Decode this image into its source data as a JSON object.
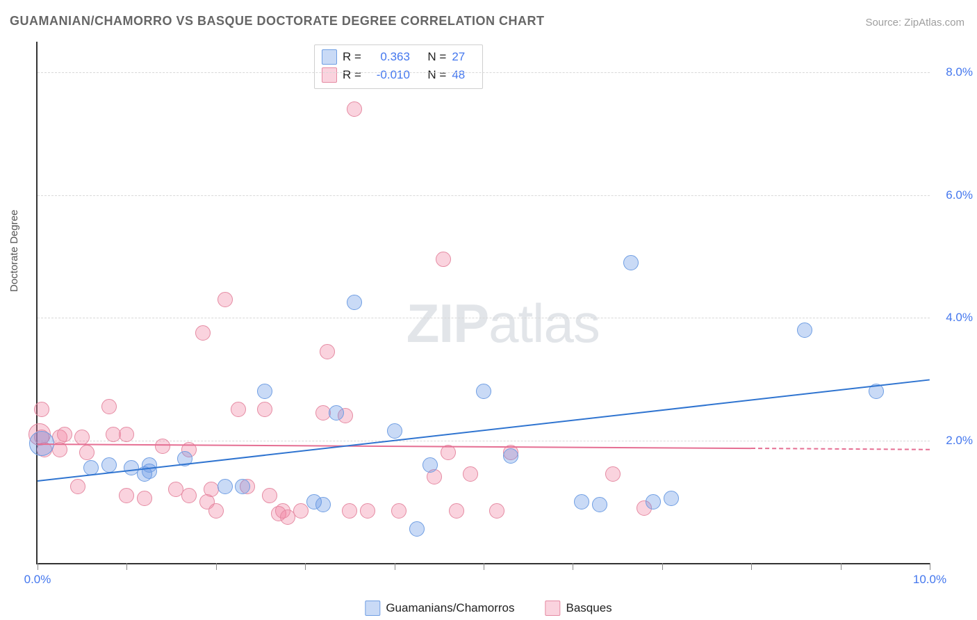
{
  "title": "GUAMANIAN/CHAMORRO VS BASQUE DOCTORATE DEGREE CORRELATION CHART",
  "source_label": "Source: ZipAtlas.com",
  "ylabel": "Doctorate Degree",
  "watermark_strong": "ZIP",
  "watermark_light": "atlas",
  "colors": {
    "series_a_fill": "rgba(100,150,230,0.35)",
    "series_a_stroke": "#6f9ee3",
    "series_a_line": "#2f74d0",
    "series_b_fill": "rgba(240,130,160,0.35)",
    "series_b_stroke": "#e58aa2",
    "series_b_line": "#e56f93",
    "axis_text": "#4477ee",
    "grid": "#d8d8d8",
    "border": "#333333",
    "title_text": "#666666",
    "source_text": "#9e9e9e"
  },
  "chart": {
    "type": "scatter",
    "xlim": [
      0,
      10
    ],
    "ylim": [
      0,
      8.5
    ],
    "x_ticks": [
      0,
      1,
      2,
      3,
      4,
      5,
      6,
      7,
      8,
      9,
      10
    ],
    "x_tick_labels": {
      "0": "0.0%",
      "10": "10.0%"
    },
    "y_gridlines": [
      2,
      4,
      6,
      8
    ],
    "y_tick_labels": {
      "2": "2.0%",
      "4": "4.0%",
      "6": "6.0%",
      "8": "8.0%"
    },
    "marker_radius": 11,
    "marker_stroke_width": 1,
    "line_width": 2,
    "title_fontsize": 18,
    "label_fontsize": 15,
    "tick_fontsize": 17,
    "watermark_fontsize": 78
  },
  "series_a": {
    "label": "Guamanians/Chamorros",
    "r_label": "R =",
    "r_value": "0.363",
    "n_label": "N =",
    "n_value": "27",
    "points": [
      {
        "x": 0.05,
        "y": 1.95,
        "r": 18
      },
      {
        "x": 0.6,
        "y": 1.55
      },
      {
        "x": 0.8,
        "y": 1.6
      },
      {
        "x": 1.05,
        "y": 1.55
      },
      {
        "x": 1.2,
        "y": 1.45
      },
      {
        "x": 1.25,
        "y": 1.5
      },
      {
        "x": 1.25,
        "y": 1.6
      },
      {
        "x": 1.65,
        "y": 1.7
      },
      {
        "x": 2.1,
        "y": 1.25
      },
      {
        "x": 2.3,
        "y": 1.25
      },
      {
        "x": 2.55,
        "y": 2.8
      },
      {
        "x": 3.1,
        "y": 1.0
      },
      {
        "x": 3.2,
        "y": 0.95
      },
      {
        "x": 3.35,
        "y": 2.45
      },
      {
        "x": 3.55,
        "y": 4.25
      },
      {
        "x": 4.0,
        "y": 2.15
      },
      {
        "x": 4.25,
        "y": 0.55
      },
      {
        "x": 4.4,
        "y": 1.6
      },
      {
        "x": 5.0,
        "y": 2.8
      },
      {
        "x": 5.3,
        "y": 1.75
      },
      {
        "x": 6.1,
        "y": 1.0
      },
      {
        "x": 6.3,
        "y": 0.95
      },
      {
        "x": 6.65,
        "y": 4.9
      },
      {
        "x": 6.9,
        "y": 1.0
      },
      {
        "x": 7.1,
        "y": 1.05
      },
      {
        "x": 8.6,
        "y": 3.8
      },
      {
        "x": 9.4,
        "y": 2.8
      }
    ],
    "trend": {
      "x1": 0.0,
      "y1": 1.35,
      "x2": 10.0,
      "y2": 3.0
    }
  },
  "series_b": {
    "label": "Basques",
    "r_label": "R =",
    "r_value": "-0.010",
    "n_label": "N =",
    "n_value": "48",
    "points": [
      {
        "x": 0.02,
        "y": 2.1,
        "r": 16
      },
      {
        "x": 0.05,
        "y": 2.5
      },
      {
        "x": 0.05,
        "y": 2.05
      },
      {
        "x": 0.08,
        "y": 1.85
      },
      {
        "x": 0.25,
        "y": 2.05
      },
      {
        "x": 0.25,
        "y": 1.85
      },
      {
        "x": 0.3,
        "y": 2.1
      },
      {
        "x": 0.45,
        "y": 1.25
      },
      {
        "x": 0.5,
        "y": 2.05
      },
      {
        "x": 0.55,
        "y": 1.8
      },
      {
        "x": 0.8,
        "y": 2.55
      },
      {
        "x": 0.85,
        "y": 2.1
      },
      {
        "x": 1.0,
        "y": 2.1
      },
      {
        "x": 1.0,
        "y": 1.1
      },
      {
        "x": 1.2,
        "y": 1.05
      },
      {
        "x": 1.4,
        "y": 1.9
      },
      {
        "x": 1.55,
        "y": 1.2
      },
      {
        "x": 1.7,
        "y": 1.85
      },
      {
        "x": 1.7,
        "y": 1.1
      },
      {
        "x": 1.85,
        "y": 3.75
      },
      {
        "x": 1.9,
        "y": 1.0
      },
      {
        "x": 1.95,
        "y": 1.2
      },
      {
        "x": 2.0,
        "y": 0.85
      },
      {
        "x": 2.1,
        "y": 4.3
      },
      {
        "x": 2.25,
        "y": 2.5
      },
      {
        "x": 2.35,
        "y": 1.25
      },
      {
        "x": 2.55,
        "y": 2.5
      },
      {
        "x": 2.6,
        "y": 1.1
      },
      {
        "x": 2.7,
        "y": 0.8
      },
      {
        "x": 2.75,
        "y": 0.85
      },
      {
        "x": 2.8,
        "y": 0.75
      },
      {
        "x": 2.95,
        "y": 0.85
      },
      {
        "x": 3.2,
        "y": 2.45
      },
      {
        "x": 3.25,
        "y": 3.45
      },
      {
        "x": 3.45,
        "y": 2.4
      },
      {
        "x": 3.5,
        "y": 0.85
      },
      {
        "x": 3.55,
        "y": 7.4
      },
      {
        "x": 3.7,
        "y": 0.85
      },
      {
        "x": 4.05,
        "y": 0.85
      },
      {
        "x": 4.45,
        "y": 1.4
      },
      {
        "x": 4.55,
        "y": 4.95
      },
      {
        "x": 4.6,
        "y": 1.8
      },
      {
        "x": 4.7,
        "y": 0.85
      },
      {
        "x": 4.85,
        "y": 1.45
      },
      {
        "x": 5.15,
        "y": 0.85
      },
      {
        "x": 5.3,
        "y": 1.8
      },
      {
        "x": 6.45,
        "y": 1.45
      },
      {
        "x": 6.8,
        "y": 0.9
      }
    ],
    "trend_solid": {
      "x1": 0.0,
      "y1": 1.95,
      "x2": 8.0,
      "y2": 1.88
    },
    "trend_dash": {
      "x1": 8.0,
      "y1": 1.88,
      "x2": 10.0,
      "y2": 1.86
    }
  }
}
